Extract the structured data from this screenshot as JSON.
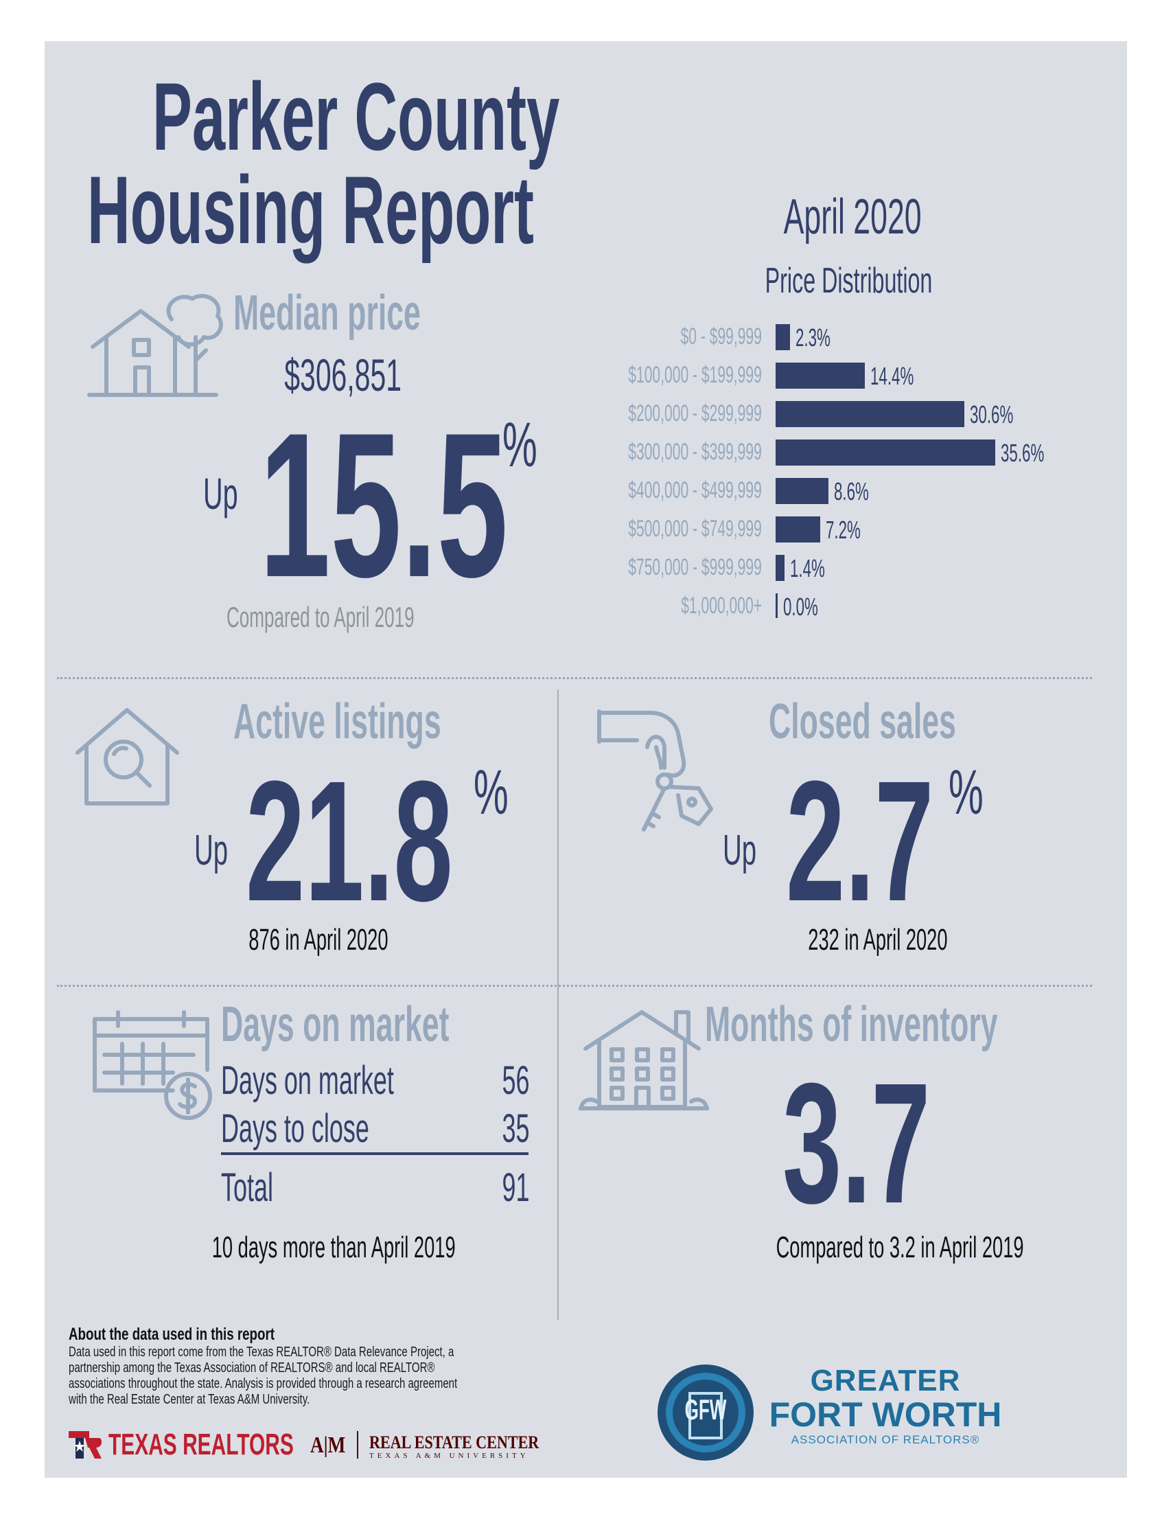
{
  "header": {
    "title_line1": "Parker County",
    "title_line2": "Housing Report",
    "period": "April 2020"
  },
  "median_price": {
    "heading": "Median price",
    "value": "$306,851",
    "direction": "Up",
    "change": "15.5",
    "pct_sign": "%",
    "comparison": "Compared to April 2019",
    "icon": "house-with-tree-icon"
  },
  "price_distribution": {
    "heading": "Price Distribution",
    "chart_data": {
      "type": "bar",
      "title": "Price Distribution",
      "categories": [
        "$0 - $99,999",
        "$100,000 - $199,999",
        "$200,000 - $299,999",
        "$300,000 - $399,999",
        "$400,000 - $499,999",
        "$500,000 - $749,999",
        "$750,000 - $999,999",
        "$1,000,000+"
      ],
      "values": [
        2.3,
        14.4,
        30.6,
        35.6,
        8.6,
        7.2,
        1.4,
        0.0
      ],
      "value_labels": [
        "2.3%",
        "14.4%",
        "30.6%",
        "35.6%",
        "8.6%",
        "7.2%",
        "1.4%",
        "0.0%"
      ],
      "orientation": "horizontal",
      "color": "#33406a"
    }
  },
  "active_listings": {
    "heading": "Active listings",
    "direction": "Up",
    "change": "21.8",
    "pct_sign": "%",
    "detail": "876 in April 2020",
    "icon": "house-magnifier-icon"
  },
  "closed_sales": {
    "heading": "Closed sales",
    "direction": "Up",
    "change": "2.7",
    "pct_sign": "%",
    "detail": "232 in April 2020",
    "icon": "hand-with-keys-icon"
  },
  "days_on_market": {
    "heading": "Days on market",
    "rows": [
      {
        "label": "Days on market",
        "value": "56"
      },
      {
        "label": "Days to close",
        "value": "35"
      }
    ],
    "total_label": "Total",
    "total_value": "91",
    "detail": "10 days more than April 2019",
    "icon": "calendar-dollar-icon"
  },
  "months_inventory": {
    "heading": "Months of inventory",
    "value": "3.7",
    "detail": "Compared to 3.2 in April 2019",
    "icon": "apartment-building-icon"
  },
  "footer": {
    "about_title": "About the data used in this report",
    "about_lines": [
      "Data used in this report come from the Texas REALTOR® Data Relevance Project, a",
      "partnership among the Texas Association of REALTORS® and local REALTOR®",
      "associations throughout the state. Analysis is provided through a research agreement",
      "with the Real Estate Center at Texas A&M University."
    ],
    "texas_realtors_logo": "TEXAS REALTORS",
    "tamu_logo": "A|M",
    "rec_line1": "REAL ESTATE CENTER",
    "rec_line2": "TEXAS A&M UNIVERSITY",
    "gfw_line1": "GREATER",
    "gfw_line2": "FORT WORTH",
    "gfw_line3": "ASSOCIATION OF REALTORS®",
    "gfw_seal": "GFW"
  },
  "colors": {
    "navy": "#33406a",
    "light_blue": "#97a8bd",
    "panel": "#dbdfe5",
    "gfw_blue": "#1f6d9a",
    "texas_red": "#bf1e2e",
    "maroon": "#500000"
  }
}
